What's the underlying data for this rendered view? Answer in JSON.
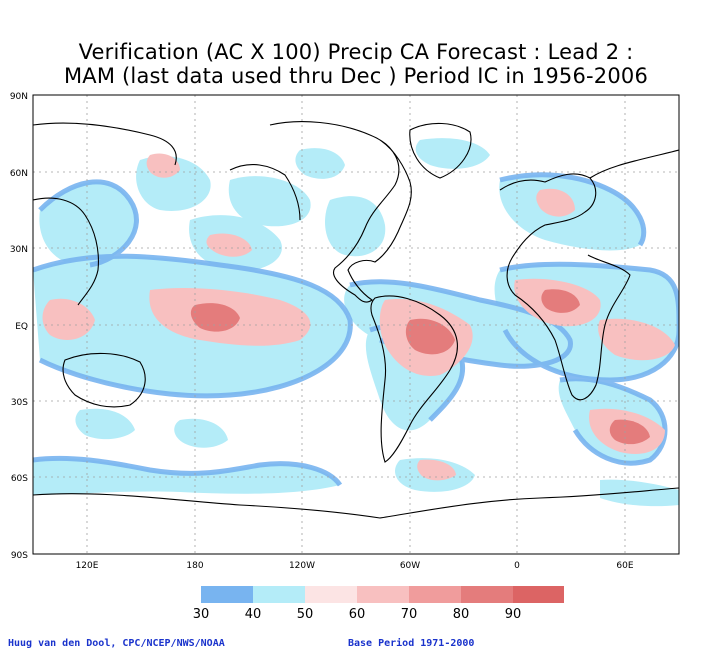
{
  "title": {
    "line1": "Verification (AC X 100) Precip CA Forecast : Lead 2 :",
    "line2": "MAM (last data used thru Dec ) Period IC in 1956-2006"
  },
  "map": {
    "lat_labels": [
      "90N",
      "60N",
      "30N",
      "EQ",
      "30S",
      "60S",
      "90S"
    ],
    "lon_labels": [
      "120E",
      "180",
      "120W",
      "60W",
      "0",
      "60E"
    ]
  },
  "legend": {
    "bins": [
      {
        "color": "#78b4f0"
      },
      {
        "color": "#b4ecf8"
      },
      {
        "color": "#fce4e4"
      },
      {
        "color": "#f8c0c0"
      },
      {
        "color": "#f09c9c"
      },
      {
        "color": "#e47c7c"
      },
      {
        "color": "#dc6464"
      }
    ],
    "labels": [
      "30",
      "40",
      "50",
      "60",
      "70",
      "80",
      "90"
    ]
  },
  "credits": {
    "left": "Huug van den Dool, CPC/NCEP/NWS/NOAA",
    "right": "Base Period 1971-2000"
  }
}
